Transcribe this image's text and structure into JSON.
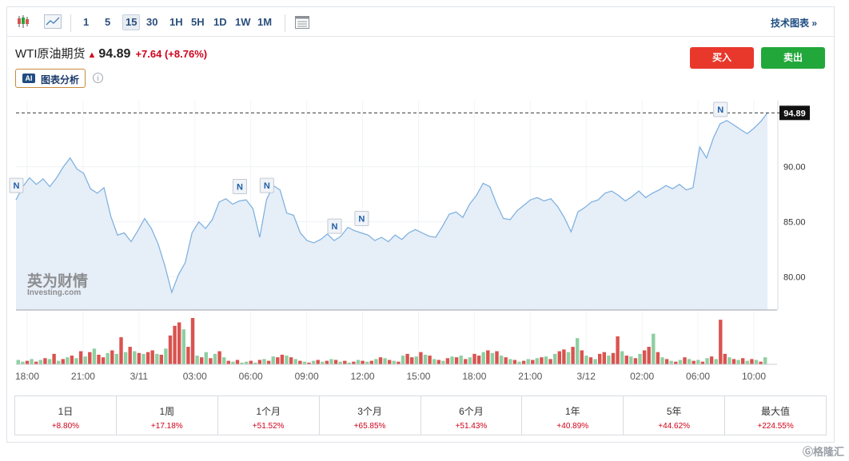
{
  "toolbar": {
    "intervals": [
      "1",
      "5",
      "15",
      "30",
      "1H",
      "5H",
      "1D",
      "1W",
      "1M"
    ],
    "active_interval": "15",
    "tech_chart_link": "技术图表 »"
  },
  "quote": {
    "name": "WTI原油期货",
    "arrow": "▲",
    "price": "94.89",
    "change": "+7.64",
    "change_pct": "(+8.76%)"
  },
  "ai": {
    "badge": "AI",
    "label": "图表分析",
    "info": "i"
  },
  "buttons": {
    "buy": "买入",
    "sell": "卖出"
  },
  "watermark": {
    "brand": "英为财情",
    "sub": "Investing.com"
  },
  "colors": {
    "line": "#7aaedf",
    "area": "#e6eef7",
    "up": "#d9534f",
    "down": "#8fcfa2",
    "buy": "#e8382c",
    "sell": "#22a83a",
    "negative_text": "#d0021b"
  },
  "chart_data": {
    "type": "area",
    "price_axis": {
      "min": 77,
      "max": 96,
      "ticks": [
        "90.00",
        "85.00",
        "80.00"
      ],
      "current": "94.89"
    },
    "time_labels": [
      "18:00",
      "21:00",
      "3/11",
      "03:00",
      "06:00",
      "09:00",
      "12:00",
      "15:00",
      "18:00",
      "21:00",
      "3/12",
      "02:00",
      "06:00",
      "10:00"
    ],
    "price": [
      87.0,
      88.2,
      89.0,
      88.4,
      88.9,
      88.2,
      89.0,
      90.0,
      90.8,
      89.8,
      89.4,
      88.0,
      87.6,
      88.1,
      85.5,
      83.8,
      84.0,
      83.2,
      84.2,
      85.3,
      84.4,
      83.0,
      81.0,
      78.6,
      80.2,
      81.3,
      84.0,
      85.0,
      84.4,
      85.2,
      86.8,
      87.1,
      86.6,
      86.9,
      87.0,
      86.2,
      83.6,
      87.0,
      88.3,
      87.9,
      85.8,
      85.6,
      84.0,
      83.3,
      83.1,
      83.4,
      83.9,
      83.3,
      83.7,
      84.5,
      84.2,
      84.0,
      83.8,
      83.3,
      83.6,
      83.2,
      83.8,
      83.4,
      84.0,
      84.3,
      84.0,
      83.7,
      83.6,
      84.6,
      85.7,
      85.9,
      85.4,
      86.6,
      87.4,
      88.5,
      88.2,
      86.6,
      85.3,
      85.2,
      86.0,
      86.5,
      87.0,
      87.2,
      86.9,
      87.1,
      86.4,
      85.4,
      84.1,
      85.9,
      86.3,
      86.8,
      87.0,
      87.6,
      87.8,
      87.4,
      86.9,
      87.3,
      87.8,
      87.2,
      87.6,
      87.9,
      88.3,
      88.0,
      88.4,
      87.9,
      88.1,
      91.8,
      90.8,
      92.6,
      93.9,
      94.2,
      93.8,
      93.4,
      93.0,
      93.5,
      94.1,
      94.89
    ],
    "volume": [
      5,
      3,
      4,
      6,
      3,
      5,
      7,
      6,
      12,
      4,
      6,
      8,
      10,
      7,
      15,
      9,
      14,
      18,
      11,
      8,
      13,
      16,
      12,
      31,
      14,
      20,
      15,
      13,
      12,
      14,
      16,
      12,
      11,
      18,
      33,
      44,
      48,
      40,
      20,
      53,
      10,
      8,
      14,
      7,
      12,
      15,
      8,
      4,
      3,
      5,
      2,
      3,
      4,
      2,
      5,
      6,
      4,
      9,
      8,
      11,
      10,
      8,
      6,
      4,
      3,
      2,
      4,
      5,
      3,
      4,
      6,
      5,
      3,
      4,
      2,
      3,
      5,
      4,
      3,
      4,
      6,
      8,
      7,
      5,
      4,
      3,
      10,
      12,
      8,
      9,
      14,
      11,
      10,
      6,
      5,
      4,
      7,
      9,
      8,
      10,
      6,
      8,
      12,
      10,
      14,
      16,
      13,
      15,
      10,
      8,
      6,
      5,
      3,
      4,
      6,
      5,
      7,
      8,
      9,
      6,
      12,
      15,
      17,
      14,
      20,
      30,
      16,
      10,
      8,
      6,
      12,
      14,
      10,
      13,
      32,
      15,
      10,
      9,
      7,
      12,
      16,
      20,
      35,
      14,
      8,
      6,
      4,
      3,
      5,
      8,
      6,
      4,
      5,
      3,
      7,
      9,
      6,
      51,
      12,
      8,
      6,
      5,
      7,
      4,
      6,
      5,
      3,
      8
    ],
    "volume_up": [
      false,
      false,
      true,
      false,
      true,
      false,
      true,
      false,
      true,
      false,
      true,
      false,
      true,
      false,
      true,
      false,
      true,
      false,
      true,
      true,
      false,
      true,
      false,
      true,
      false,
      true,
      false,
      true,
      false,
      true,
      true,
      false,
      true,
      false,
      true,
      true,
      true,
      false,
      true,
      true,
      false,
      true,
      false,
      true,
      false,
      true,
      false,
      true,
      false,
      true,
      false,
      false,
      true,
      false,
      true,
      false,
      true,
      false,
      true,
      true,
      false,
      true,
      false,
      true,
      false,
      true,
      false,
      true,
      false,
      true,
      false,
      true,
      false,
      true,
      false,
      true,
      false,
      true,
      false,
      true,
      false,
      true,
      false,
      true,
      false,
      true,
      false,
      true,
      true,
      false,
      true,
      false,
      true,
      false,
      true,
      false,
      true,
      false,
      true,
      false,
      true,
      false,
      true,
      true,
      false,
      true,
      false,
      true,
      false,
      true,
      false,
      true,
      false,
      true,
      false,
      true,
      false,
      true,
      false,
      true,
      false,
      true,
      true,
      false,
      true,
      false,
      true,
      false,
      true,
      false,
      true,
      true,
      false,
      true,
      true,
      false,
      true,
      false,
      true,
      false,
      true,
      true,
      false,
      true,
      false,
      true,
      false,
      true,
      false,
      true,
      false,
      true,
      false,
      true,
      false,
      true,
      false,
      true,
      true,
      false,
      true,
      false,
      true,
      false,
      true,
      false,
      true,
      false,
      true
    ],
    "news_markers": [
      {
        "label": "N",
        "index": 0
      },
      {
        "label": "N",
        "index": 33
      },
      {
        "label": "N",
        "index": 37
      },
      {
        "label": "N",
        "index": 47
      },
      {
        "label": "N",
        "index": 51
      },
      {
        "label": "N",
        "index": 104
      }
    ]
  },
  "performance": [
    {
      "label": "1日",
      "value": "+8.80%"
    },
    {
      "label": "1周",
      "value": "+17.18%"
    },
    {
      "label": "1个月",
      "value": "+51.52%"
    },
    {
      "label": "3个月",
      "value": "+65.85%"
    },
    {
      "label": "6个月",
      "value": "+51.43%"
    },
    {
      "label": "1年",
      "value": "+40.89%"
    },
    {
      "label": "5年",
      "value": "+44.62%"
    },
    {
      "label": "最大值",
      "value": "+224.55%"
    }
  ],
  "site_watermark": "格隆汇"
}
